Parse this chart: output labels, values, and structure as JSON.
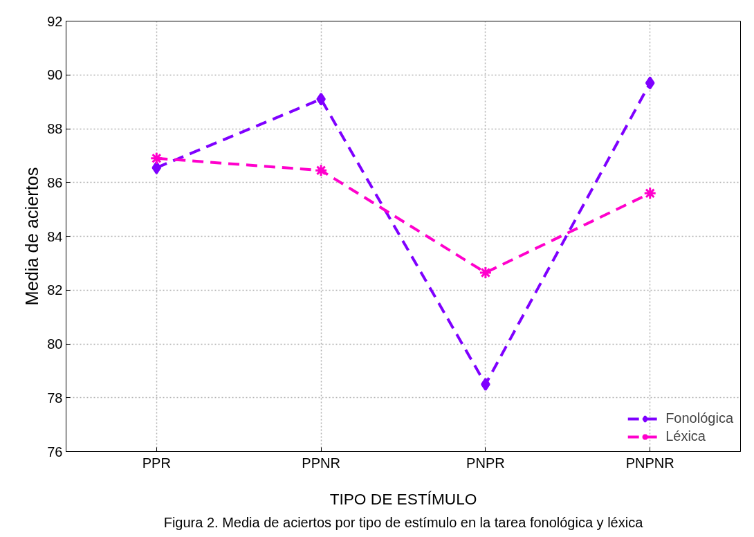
{
  "chart_data": {
    "type": "line",
    "categories": [
      "PPR",
      "PPNR",
      "PNPR",
      "PNPNR"
    ],
    "series": [
      {
        "name": "Fonológica",
        "color": "#7f00ff",
        "marker": "diamond",
        "values": [
          86.55,
          89.1,
          78.5,
          89.7
        ]
      },
      {
        "name": "Léxica",
        "color": "#ff00cc",
        "marker": "cross",
        "values": [
          86.9,
          86.45,
          82.65,
          85.6
        ]
      }
    ],
    "xlabel": "TIPO DE ESTÍMULO",
    "ylabel": "Media de aciertos",
    "ylim": [
      76,
      92
    ],
    "yticks": [
      76,
      78,
      80,
      82,
      84,
      86,
      88,
      90,
      92
    ],
    "grid": true,
    "legend": "bottom right",
    "line_style": "dashed",
    "annotations": [
      "Figura 2. Media de aciertos por tipo de estímulo en la tarea fonológica y léxica"
    ]
  }
}
